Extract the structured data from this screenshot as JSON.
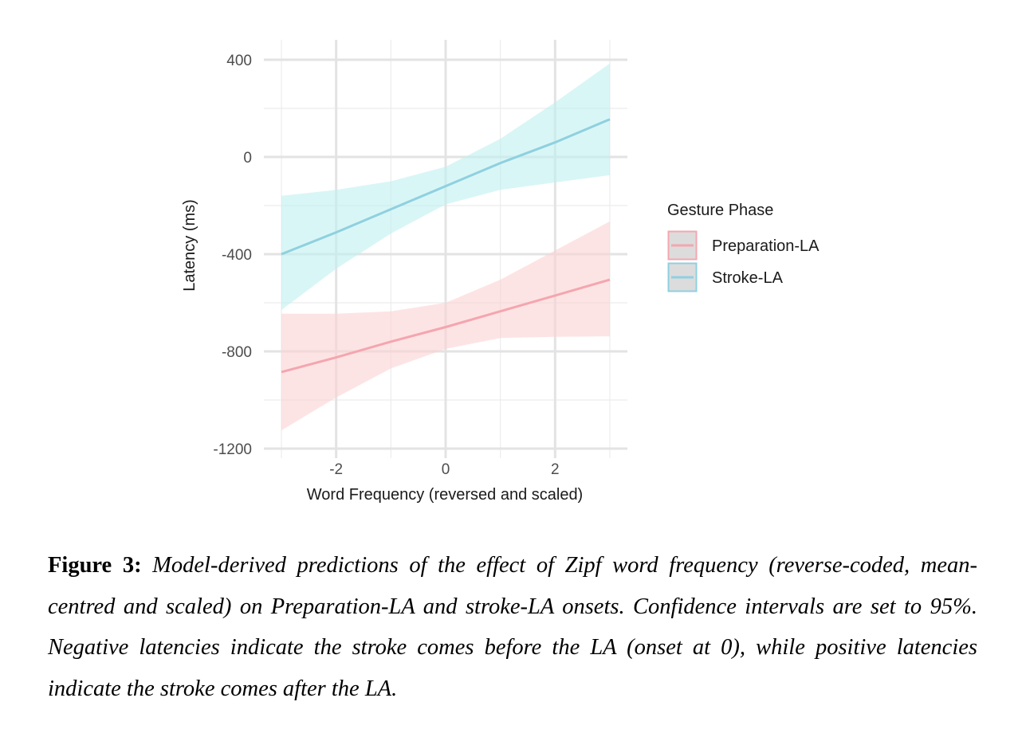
{
  "chart_data": {
    "type": "line",
    "xlabel": "Word Frequency (reversed and scaled)",
    "ylabel": "Latency (ms)",
    "xlim": [
      -3.2,
      3.3
    ],
    "ylim": [
      -1200,
      400
    ],
    "x_ticks": [
      -2,
      0,
      2
    ],
    "y_ticks": [
      400,
      0,
      -400,
      -800,
      -1200
    ],
    "x_grid_minor": [
      -3,
      -1,
      1,
      3
    ],
    "y_grid_minor": [
      200,
      -200,
      -600,
      -1000
    ],
    "grid": true,
    "legend_title": "Gesture Phase",
    "legend_position": "right",
    "series": [
      {
        "name": "Preparation-LA",
        "color": "#f4a6b0",
        "band_color": "#fbd2d2",
        "x": [
          -3,
          -2,
          -1,
          0,
          1,
          2,
          3
        ],
        "values": [
          -885,
          -825,
          -760,
          -700,
          -635,
          -570,
          -505
        ],
        "ci_lower": [
          -1125,
          -990,
          -870,
          -790,
          -745,
          -740,
          -738
        ],
        "ci_upper": [
          -645,
          -645,
          -635,
          -600,
          -505,
          -385,
          -265
        ]
      },
      {
        "name": "Stroke-LA",
        "color": "#8fd0e0",
        "band_color": "#bff0f0",
        "x": [
          -3,
          -2,
          -1,
          0,
          1,
          2,
          3
        ],
        "values": [
          -400,
          -310,
          -215,
          -120,
          -25,
          60,
          155
        ],
        "ci_lower": [
          -630,
          -460,
          -315,
          -195,
          -135,
          -105,
          -75
        ],
        "ci_upper": [
          -160,
          -135,
          -100,
          -40,
          75,
          225,
          385
        ]
      }
    ]
  },
  "caption": {
    "label": "Figure 3:",
    "text": "Model-derived predictions of the effect of Zipf word frequency (reverse-coded, mean-centred and scaled) on Preparation-LA and stroke-LA onsets. Confidence intervals are set to 95%. Negative latencies indicate the stroke comes before the LA (onset at 0), while positive latencies indicate the stroke comes after the LA."
  }
}
